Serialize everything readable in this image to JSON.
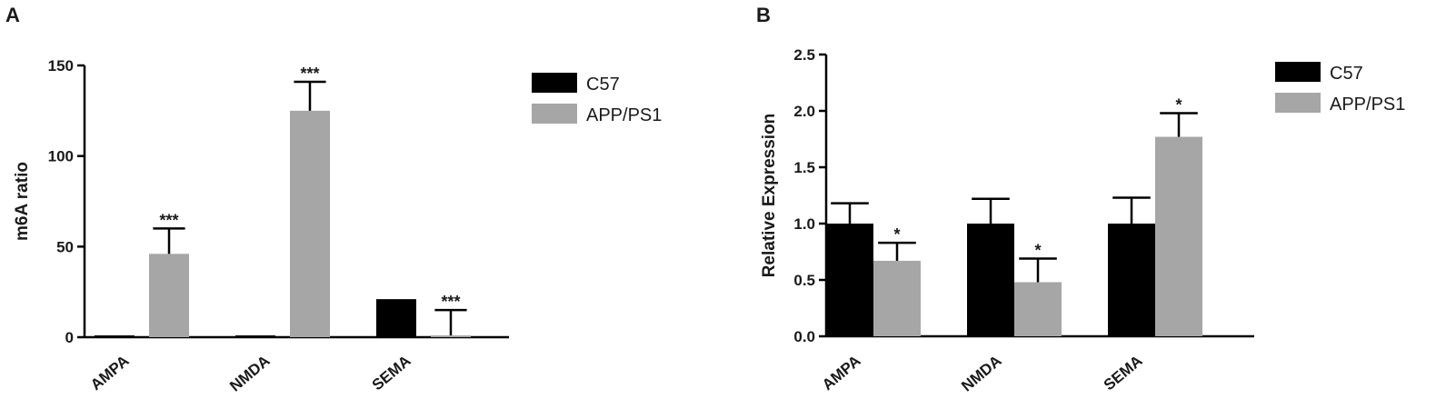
{
  "colors": {
    "C57": "#000000",
    "APP/PS1": "#a6a6a6"
  },
  "chart_data": [
    {
      "panel": "A",
      "type": "bar",
      "categories": [
        "AMPA",
        "NMDA",
        "SEMA"
      ],
      "ylabel": "m6A ratio",
      "xlabel": "",
      "ylim": [
        0,
        150
      ],
      "yticks": [
        "0",
        "50",
        "100",
        "150"
      ],
      "ytick_values": [
        0,
        50,
        100,
        150
      ],
      "legend": "right",
      "series": [
        {
          "name": "C57",
          "values": [
            1,
            1,
            21
          ],
          "errors": [
            0,
            0,
            0
          ],
          "marks": [
            "",
            "",
            ""
          ]
        },
        {
          "name": "APP/PS1",
          "values": [
            46,
            125,
            1
          ],
          "errors": [
            14,
            16,
            14
          ],
          "marks": [
            "***",
            "***",
            "***"
          ]
        }
      ]
    },
    {
      "panel": "B",
      "type": "bar",
      "categories": [
        "AMPA",
        "NMDA",
        "SEMA"
      ],
      "ylabel": "Relative Expression",
      "xlabel": "",
      "ylim": [
        0,
        2.5
      ],
      "yticks": [
        "0.0",
        "0.5",
        "1.0",
        "1.5",
        "2.0",
        "2.5"
      ],
      "ytick_values": [
        0,
        0.5,
        1.0,
        1.5,
        2.0,
        2.5
      ],
      "legend": "right",
      "series": [
        {
          "name": "C57",
          "values": [
            1.0,
            1.0,
            1.0
          ],
          "errors": [
            0.18,
            0.22,
            0.23
          ],
          "marks": [
            "",
            "",
            ""
          ]
        },
        {
          "name": "APP/PS1",
          "values": [
            0.67,
            0.48,
            1.77
          ],
          "errors": [
            0.16,
            0.21,
            0.21
          ],
          "marks": [
            "*",
            "*",
            "*"
          ]
        }
      ]
    }
  ]
}
